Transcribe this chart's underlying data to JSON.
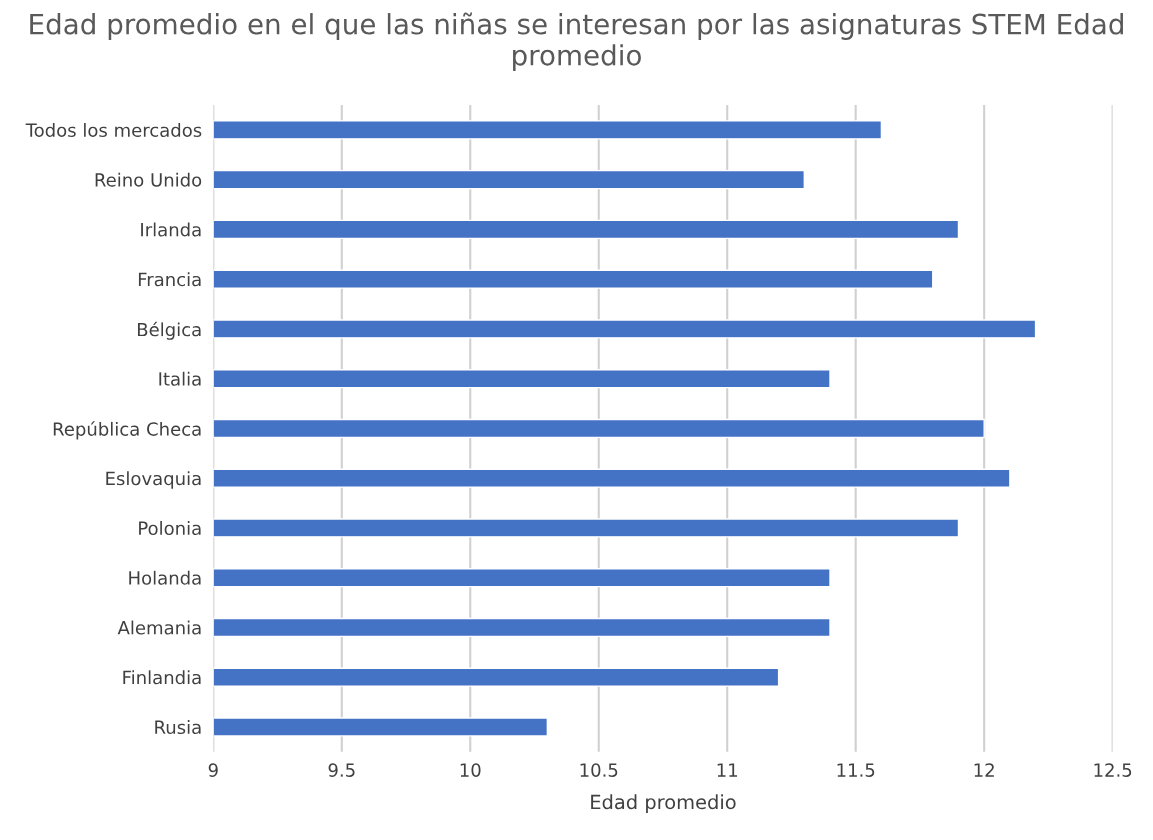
{
  "chart_data": {
    "type": "bar",
    "orientation": "horizontal",
    "title": "Edad promedio en el que las niñas se interesan por las asignaturas STEM Edad promedio",
    "xlabel": "Edad promedio",
    "categories": [
      "Todos los mercados",
      "Reino Unido",
      "Irlanda",
      "Francia",
      "Bélgica",
      "Italia",
      "República Checa",
      "Eslovaquia",
      "Polonia",
      "Holanda",
      "Alemania",
      "Finlandia",
      "Rusia"
    ],
    "values": [
      11.6,
      11.3,
      11.9,
      11.8,
      12.2,
      11.4,
      12.0,
      12.1,
      11.9,
      11.4,
      11.4,
      11.2,
      10.3
    ],
    "color": "#4472c4",
    "xlim": [
      9,
      12.5
    ],
    "xticks": [
      9,
      9.5,
      10,
      10.5,
      11,
      11.5,
      12,
      12.5
    ],
    "grid": "x",
    "legend": false
  }
}
